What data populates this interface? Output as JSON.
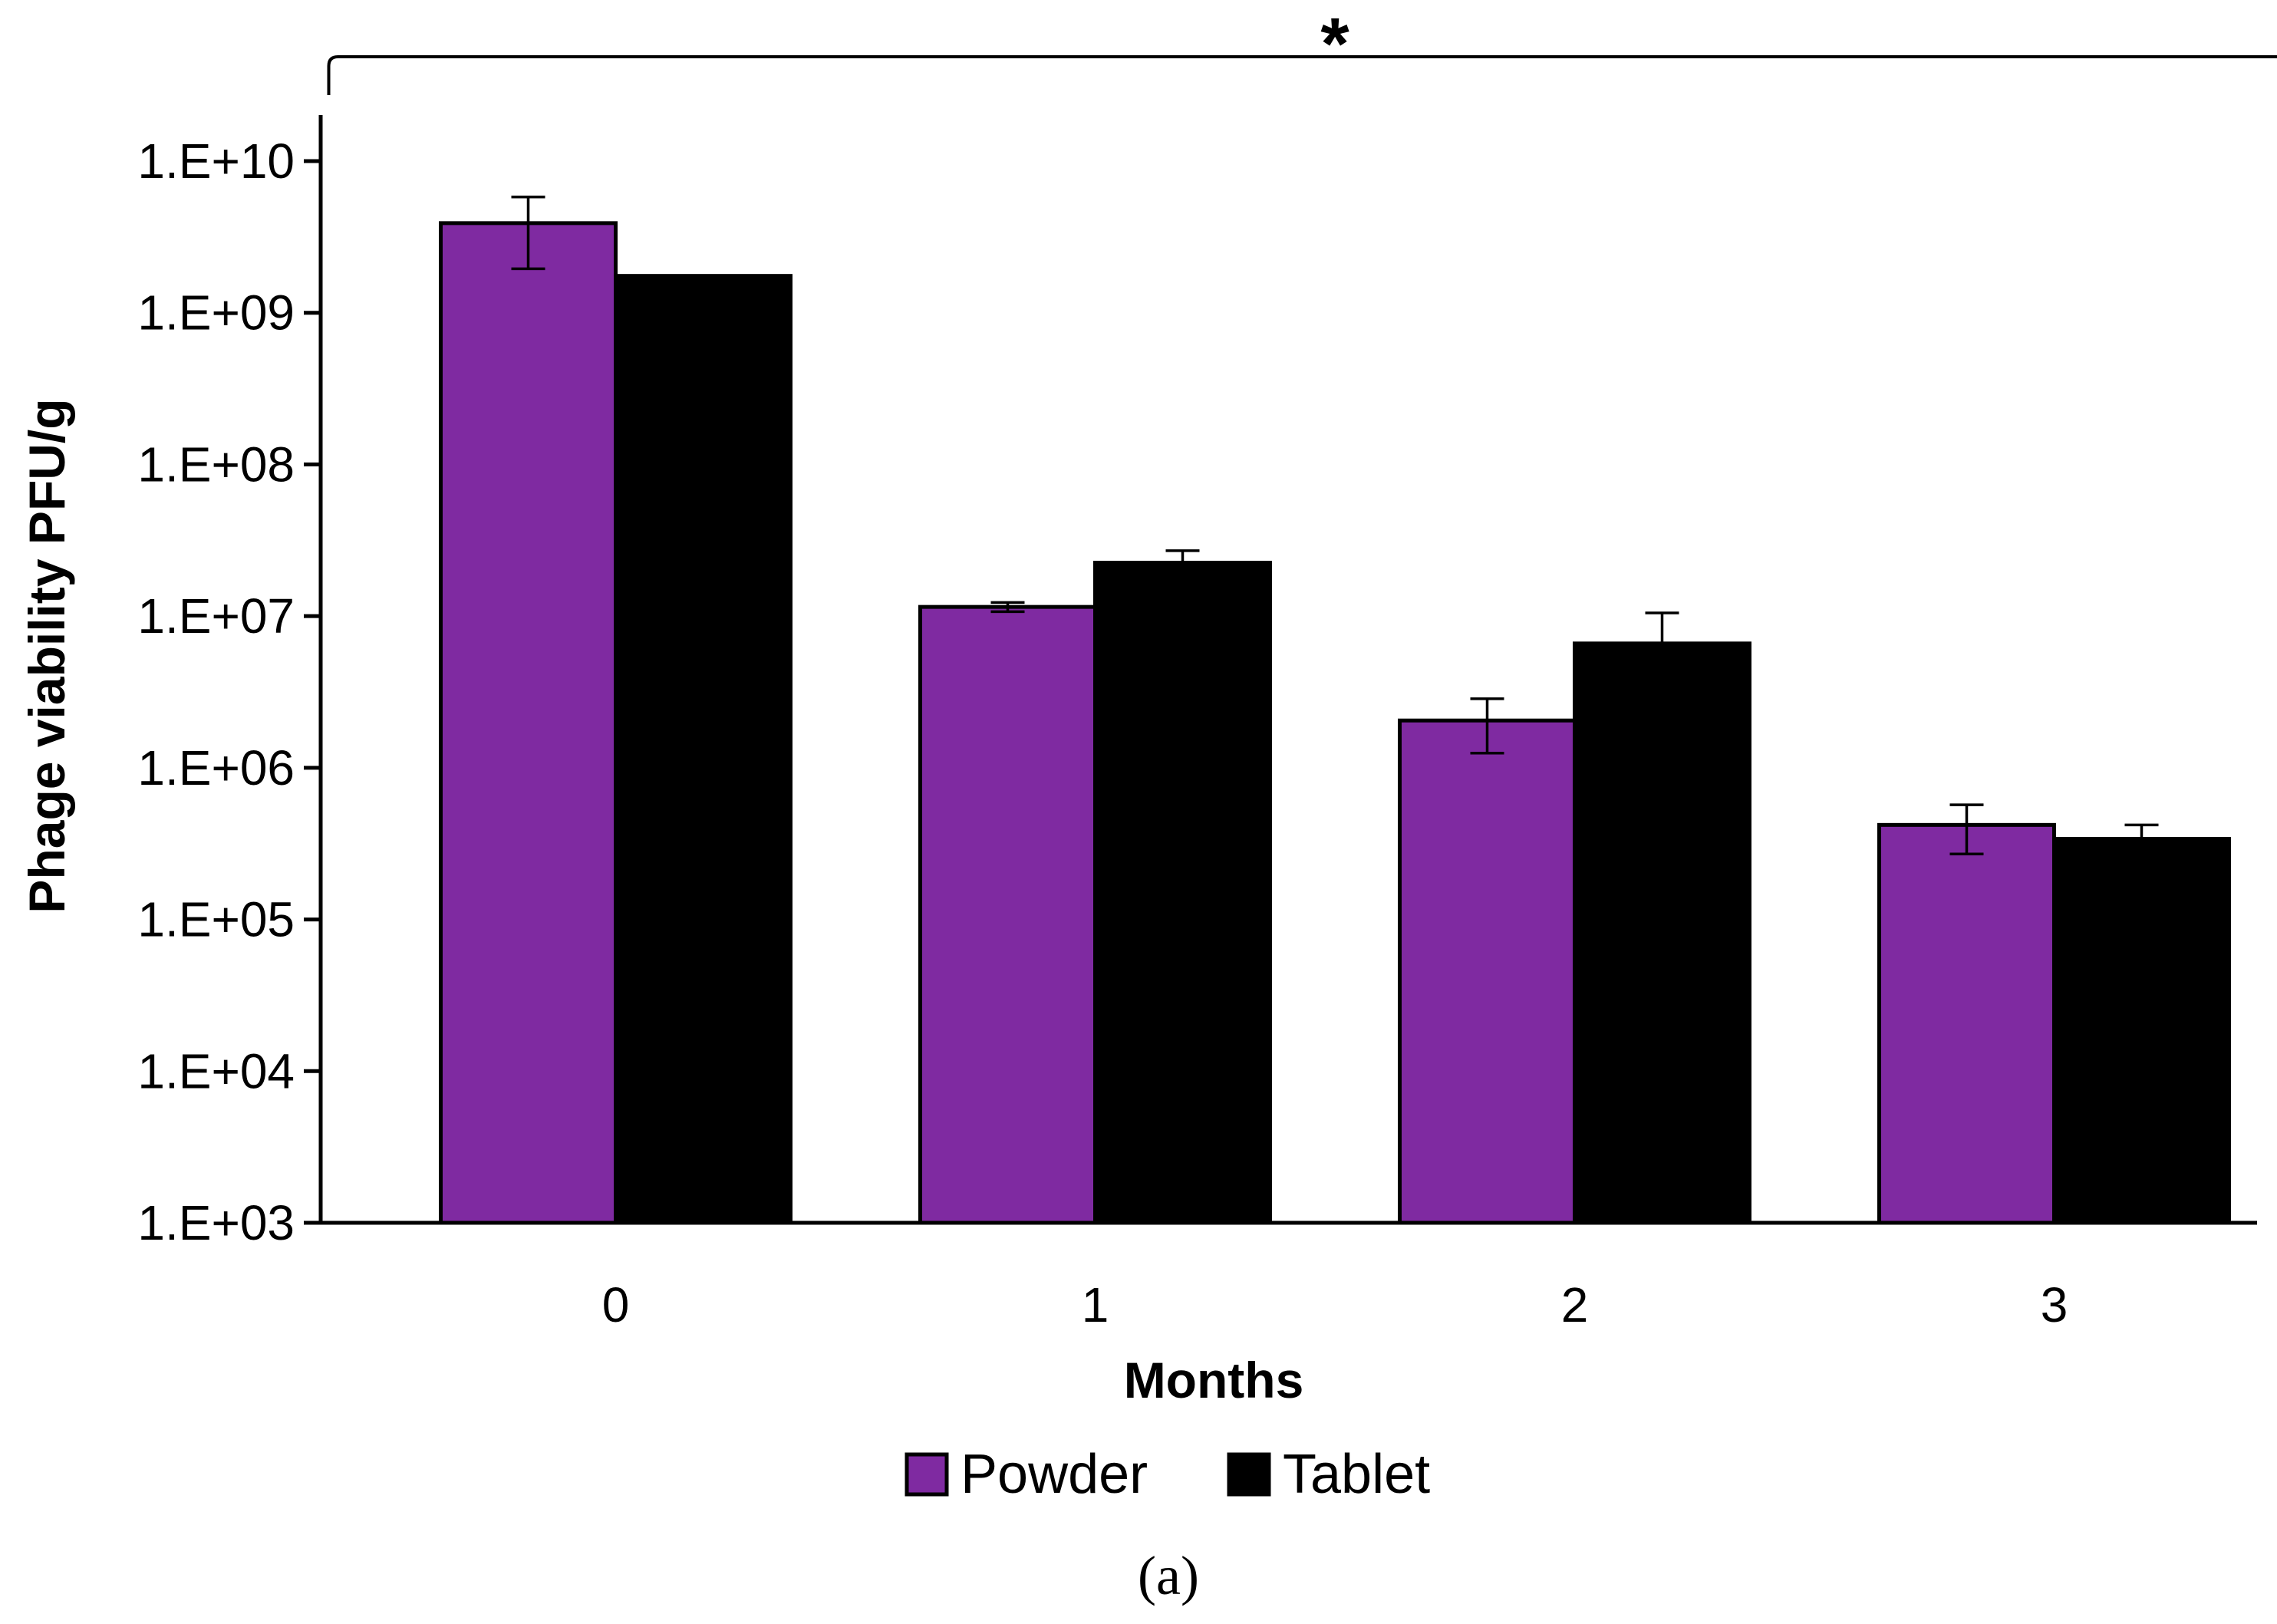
{
  "chart_data": {
    "type": "bar",
    "categories": [
      "0",
      "1",
      "2",
      "3"
    ],
    "series": [
      {
        "name": "Powder",
        "color": "#7f2aa1",
        "values": [
          3900000000,
          11500000,
          2050000,
          420000
        ],
        "error_low": [
          1950000000,
          10700000,
          1250000,
          270000
        ],
        "error_high": [
          5800000000,
          12300000,
          2850000,
          570000
        ]
      },
      {
        "name": "Tablet",
        "color": "#000000",
        "values": [
          1750000000,
          22500000,
          6600000,
          340000
        ],
        "error_low": [
          1750000000,
          22500000,
          6600000,
          340000
        ],
        "error_high": [
          1750000000,
          27000000,
          10500000,
          420000
        ]
      }
    ],
    "xlabel": "Months",
    "ylabel": "Phage viability PFU/g",
    "yscale": "log",
    "ylim": [
      1000,
      10000000000
    ],
    "y_ticks": [
      1000,
      10000,
      100000,
      1000000,
      10000000,
      100000000,
      1000000000,
      10000000000
    ],
    "y_tick_labels": [
      "1.E+03",
      "1.E+04",
      "1.E+05",
      "1.E+06",
      "1.E+07",
      "1.E+08",
      "1.E+09",
      "1.E+10"
    ],
    "grid": false,
    "legend_position": "bottom",
    "significance": {
      "marker": "*",
      "from_category": "0",
      "to_category": "3"
    },
    "panel_label": "(a)"
  }
}
